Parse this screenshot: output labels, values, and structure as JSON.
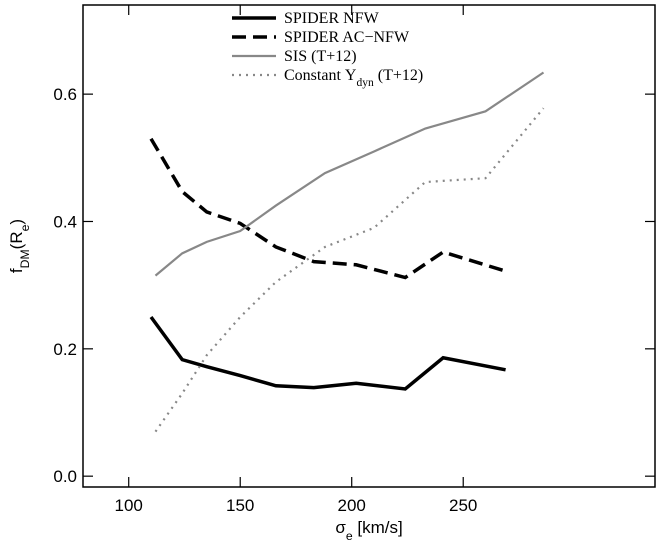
{
  "chart_data": {
    "type": "line",
    "xlabel": [
      "σ",
      "e",
      " [km/s]"
    ],
    "ylabel": [
      "f",
      "DM",
      "(R",
      "e",
      ")"
    ],
    "xlim": [
      79.5,
      336
    ],
    "ylim": [
      -0.017,
      0.74
    ],
    "xticks": [
      100,
      150,
      200,
      250
    ],
    "yticks": [
      {
        "value": 0,
        "label": "0.0"
      },
      0.2,
      0.4,
      0.6
    ],
    "legend": "top",
    "series": [
      {
        "name": "SPIDER NFW",
        "color": "#000000",
        "dash": "solid",
        "width": 3.5,
        "x": [
          110,
          124,
          135,
          150,
          166,
          183,
          202,
          224,
          241,
          269
        ],
        "values": [
          0.25,
          0.183,
          0.172,
          0.158,
          0.142,
          0.139,
          0.146,
          0.137,
          0.186,
          0.167
        ]
      },
      {
        "name": "SPIDER AC−NFW",
        "color": "#000000",
        "dash": "dash",
        "width": 3.5,
        "x": [
          110,
          124,
          135,
          150,
          166,
          183,
          202,
          224,
          241,
          269
        ],
        "values": [
          0.53,
          0.447,
          0.415,
          0.397,
          0.36,
          0.337,
          0.332,
          0.312,
          0.352,
          0.322
        ]
      },
      {
        "name": "SIS (T+12)",
        "color": "#888888",
        "dash": "solid",
        "width": 2.2,
        "x": [
          112,
          124,
          135,
          150,
          166,
          188,
          210,
          233,
          260,
          286
        ],
        "values": [
          0.315,
          0.35,
          0.368,
          0.385,
          0.425,
          0.476,
          0.51,
          0.546,
          0.573,
          0.634
        ]
      },
      {
        "name": [
          "Constant Υ",
          "dyn",
          " (T+12)"
        ],
        "color": "#888888",
        "dash": "dot",
        "width": 2.2,
        "x": [
          112,
          124,
          135,
          150,
          166,
          188,
          210,
          233,
          260,
          286
        ],
        "values": [
          0.07,
          0.13,
          0.19,
          0.25,
          0.305,
          0.36,
          0.39,
          0.462,
          0.468,
          0.578
        ]
      }
    ]
  }
}
